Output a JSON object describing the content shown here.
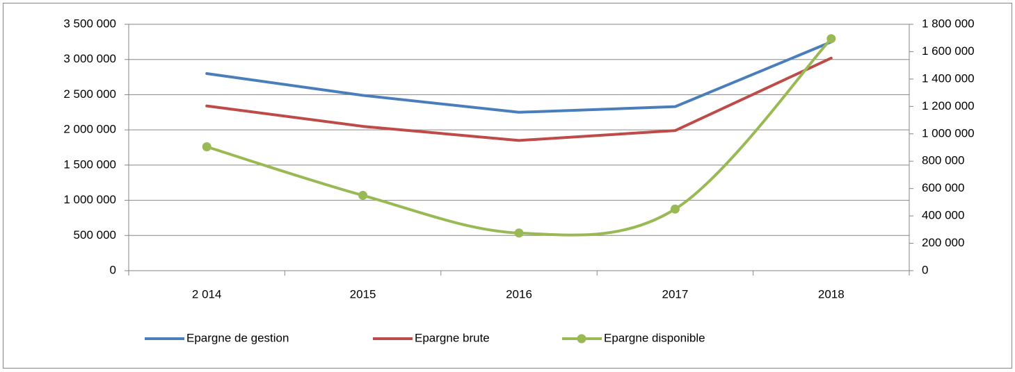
{
  "chart_data": {
    "type": "line",
    "categories": [
      "2 014",
      "2015",
      "2016",
      "2017",
      "2018"
    ],
    "series": [
      {
        "name": "Epargne de gestion",
        "color": "#4a7ebb",
        "values": [
          2800000,
          2490000,
          2250000,
          2330000,
          3250000
        ]
      },
      {
        "name": "Epargne brute",
        "color": "#be4b48",
        "values": [
          2340000,
          2050000,
          1850000,
          1990000,
          3020000
        ]
      },
      {
        "name": "Epargne disponible",
        "color": "#98b954",
        "axis": "y2",
        "smooth": true,
        "markers": true,
        "values": [
          905000,
          550000,
          275000,
          450000,
          1695000
        ]
      }
    ],
    "ylim": [
      0,
      3500000
    ],
    "yticks": [
      0,
      {
        "value": 500000,
        "label": "500 000"
      },
      {
        "value": 1000000,
        "label": "1 000 000"
      },
      {
        "value": 1500000,
        "label": "1 500 000"
      },
      {
        "value": 2000000,
        "label": "2 000 000"
      },
      {
        "value": 2500000,
        "label": "2 500 000"
      },
      {
        "value": 3000000,
        "label": "3 000 000"
      },
      {
        "value": 3500000,
        "label": "3 500 000"
      }
    ],
    "y2lim": [
      0,
      1800000
    ],
    "y2ticks": [
      0,
      {
        "value": 200000,
        "label": "200 000"
      },
      {
        "value": 400000,
        "label": "400 000"
      },
      {
        "value": 600000,
        "label": "600 000"
      },
      {
        "value": 800000,
        "label": "800 000"
      },
      {
        "value": 1000000,
        "label": "1 000 000"
      },
      {
        "value": 1200000,
        "label": "1 200 000"
      },
      {
        "value": 1400000,
        "label": "1 400 000"
      },
      {
        "value": 1600000,
        "label": "1 600 000"
      },
      {
        "value": 1800000,
        "label": "1 800 000"
      }
    ],
    "grid": true,
    "legend": "bottom"
  }
}
